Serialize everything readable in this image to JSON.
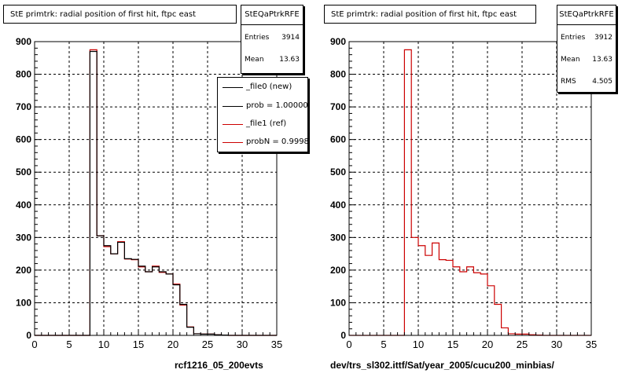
{
  "footer_stamp": "",
  "colors": {
    "new": "#000000",
    "ref": "#cc0000",
    "grid": "#000000"
  },
  "left": {
    "title": "StE primtrk: radial position of first hit, ftpc east",
    "stats": {
      "name": "StEQaPtrkRFE",
      "rows": [
        {
          "k": "Entries",
          "v": "3914"
        },
        {
          "k": "Mean",
          "v": "13.63"
        }
      ]
    },
    "legend": [
      {
        "label": "_file0 (new)",
        "color": "#000000"
      },
      {
        "label": "prob = 1.000000",
        "color": "#000000"
      },
      {
        "label": "_file1 (ref)",
        "color": "#cc0000"
      },
      {
        "label": "probN = 0.99983",
        "color": "#cc0000"
      }
    ],
    "xcaption": "rcf1216_05_200evts"
  },
  "right": {
    "title": "StE primtrk: radial position of first hit, ftpc east",
    "stats": {
      "name": "StEQaPtrkRFE",
      "rows": [
        {
          "k": "Entries",
          "v": "3912"
        },
        {
          "k": "Mean",
          "v": "13.63"
        },
        {
          "k": "RMS",
          "v": "4.505"
        }
      ]
    },
    "xcaption": "dev/trs_sl302.ittf/Sat/year_2005/cucu200_minbias/"
  },
  "chart_data": [
    {
      "type": "histogram",
      "title": "StE primtrk: radial position of first hit, ftpc east",
      "xlabel": "",
      "ylabel": "",
      "xlim": [
        0,
        35
      ],
      "ylim": [
        0,
        900
      ],
      "xticks": [
        0,
        5,
        10,
        15,
        20,
        25,
        30,
        35
      ],
      "yticks": [
        0,
        100,
        200,
        300,
        400,
        500,
        600,
        700,
        800,
        900
      ],
      "grid": true,
      "bin_edges": [
        0,
        1,
        2,
        3,
        4,
        5,
        6,
        7,
        8,
        9,
        10,
        11,
        12,
        13,
        14,
        15,
        16,
        17,
        18,
        19,
        20,
        21,
        22,
        23,
        24,
        25,
        26,
        27,
        28,
        29,
        30,
        31,
        32,
        33,
        34,
        35
      ],
      "series": [
        {
          "name": "_file0 (new)",
          "color": "#000000",
          "values": [
            0,
            0,
            0,
            0,
            0,
            0,
            0,
            0,
            870,
            305,
            275,
            250,
            285,
            235,
            233,
            212,
            195,
            210,
            195,
            188,
            155,
            95,
            25,
            5,
            4,
            4,
            2,
            1,
            0,
            0,
            0,
            0,
            0,
            0,
            0
          ]
        },
        {
          "name": "_file1 (ref)",
          "color": "#cc0000",
          "values": [
            0,
            0,
            0,
            0,
            0,
            0,
            0,
            0,
            875,
            305,
            272,
            250,
            287,
            234,
            232,
            210,
            195,
            212,
            193,
            188,
            157,
            93,
            26,
            5,
            4,
            4,
            2,
            1,
            0,
            0,
            0,
            0,
            0,
            0,
            0
          ]
        }
      ]
    },
    {
      "type": "histogram",
      "title": "StE primtrk: radial position of first hit, ftpc east",
      "xlabel": "",
      "ylabel": "",
      "xlim": [
        0,
        35
      ],
      "ylim": [
        0,
        900
      ],
      "xticks": [
        0,
        5,
        10,
        15,
        20,
        25,
        30,
        35
      ],
      "yticks": [
        0,
        100,
        200,
        300,
        400,
        500,
        600,
        700,
        800,
        900
      ],
      "grid": true,
      "bin_edges": [
        0,
        1,
        2,
        3,
        4,
        5,
        6,
        7,
        8,
        9,
        10,
        11,
        12,
        13,
        14,
        15,
        16,
        17,
        18,
        19,
        20,
        21,
        22,
        23,
        24,
        25,
        26,
        27,
        28,
        29,
        30,
        31,
        32,
        33,
        34,
        35
      ],
      "series": [
        {
          "name": "",
          "color": "#cc0000",
          "values": [
            0,
            0,
            0,
            0,
            0,
            0,
            0,
            0,
            875,
            300,
            275,
            245,
            283,
            232,
            230,
            210,
            195,
            210,
            192,
            188,
            152,
            95,
            23,
            5,
            4,
            4,
            2,
            1,
            0,
            0,
            0,
            0,
            0,
            0,
            0
          ]
        }
      ]
    }
  ]
}
